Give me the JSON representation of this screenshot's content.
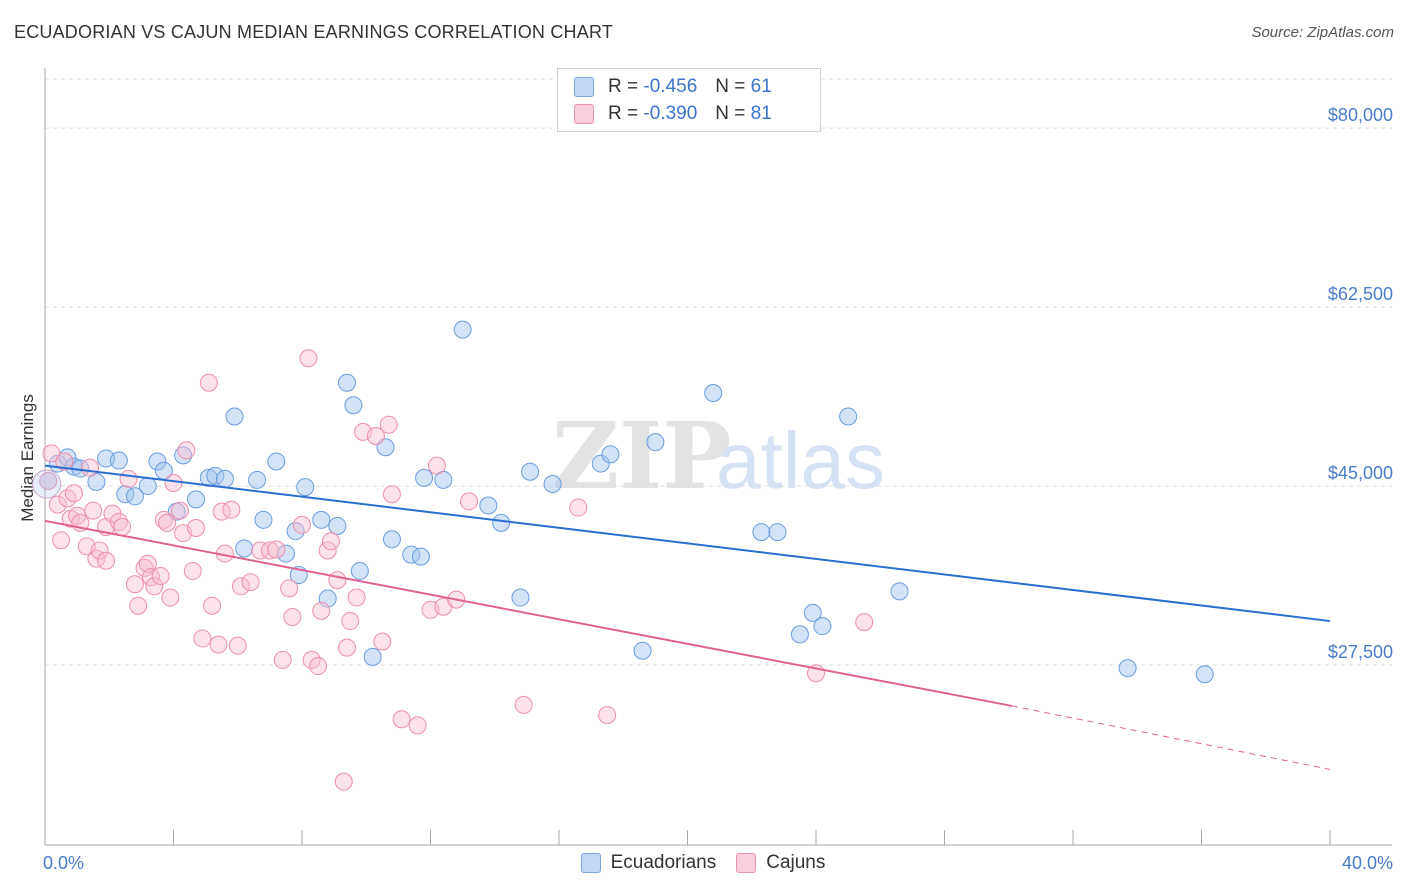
{
  "title": "ECUADORIAN VS CAJUN MEDIAN EARNINGS CORRELATION CHART",
  "source": "Source: ZipAtlas.com",
  "watermark": {
    "zip": "ZIP",
    "atlas": "atlas"
  },
  "legend": {
    "r_label": "R =",
    "n_label": "N =",
    "rows": [
      {
        "name": "Ecuadorians",
        "r": "-0.456",
        "n": "61"
      },
      {
        "name": "Cajuns",
        "r": "-0.390",
        "n": "81"
      }
    ]
  },
  "chart_data": {
    "type": "scatter",
    "title": "ECUADORIAN VS CAJUN MEDIAN EARNINGS CORRELATION CHART",
    "xlabel": "",
    "ylabel": "Median Earnings",
    "xlim": [
      0,
      40
    ],
    "ylim": [
      10000,
      85000
    ],
    "x_tick_labels": [
      "0.0%",
      "40.0%"
    ],
    "y_ticks": [
      27500,
      45000,
      62500,
      80000
    ],
    "y_tick_labels": [
      "$27,500",
      "$45,000",
      "$62,500",
      "$80,000"
    ],
    "colors": {
      "Ecuadorians": "#6a9de0",
      "Cajuns": "#ee8fad",
      "blue_line": "#2a6fd0",
      "pink_line": "#e0638f"
    },
    "series": [
      {
        "name": "Ecuadorians",
        "r": -0.456,
        "n": 61,
        "trend": {
          "x_start": 0,
          "y_start": 47000,
          "x_end": 40,
          "y_end": 31800
        },
        "points": [
          {
            "x": 0.1,
            "y": 45500
          },
          {
            "x": 0.4,
            "y": 47200
          },
          {
            "x": 0.7,
            "y": 47800
          },
          {
            "x": 0.9,
            "y": 46900
          },
          {
            "x": 1.1,
            "y": 46700
          },
          {
            "x": 1.6,
            "y": 45400
          },
          {
            "x": 1.9,
            "y": 47700
          },
          {
            "x": 2.3,
            "y": 47500
          },
          {
            "x": 2.5,
            "y": 44200
          },
          {
            "x": 2.8,
            "y": 44000
          },
          {
            "x": 3.2,
            "y": 45000
          },
          {
            "x": 3.5,
            "y": 47400
          },
          {
            "x": 3.7,
            "y": 46500
          },
          {
            "x": 4.1,
            "y": 42500
          },
          {
            "x": 4.3,
            "y": 48000
          },
          {
            "x": 4.7,
            "y": 43700
          },
          {
            "x": 5.1,
            "y": 45800
          },
          {
            "x": 5.3,
            "y": 46000
          },
          {
            "x": 5.6,
            "y": 45700
          },
          {
            "x": 5.9,
            "y": 51800
          },
          {
            "x": 6.2,
            "y": 38900
          },
          {
            "x": 6.6,
            "y": 45600
          },
          {
            "x": 6.8,
            "y": 41700
          },
          {
            "x": 7.2,
            "y": 47400
          },
          {
            "x": 7.5,
            "y": 38400
          },
          {
            "x": 7.8,
            "y": 40600
          },
          {
            "x": 7.9,
            "y": 36300
          },
          {
            "x": 8.1,
            "y": 44900
          },
          {
            "x": 8.6,
            "y": 41700
          },
          {
            "x": 8.8,
            "y": 34000
          },
          {
            "x": 9.1,
            "y": 41100
          },
          {
            "x": 9.4,
            "y": 55100
          },
          {
            "x": 9.6,
            "y": 52900
          },
          {
            "x": 9.8,
            "y": 36700
          },
          {
            "x": 10.2,
            "y": 28300
          },
          {
            "x": 10.6,
            "y": 48800
          },
          {
            "x": 10.8,
            "y": 39800
          },
          {
            "x": 11.4,
            "y": 38300
          },
          {
            "x": 11.7,
            "y": 38100
          },
          {
            "x": 11.8,
            "y": 45800
          },
          {
            "x": 12.4,
            "y": 45600
          },
          {
            "x": 13.0,
            "y": 60300
          },
          {
            "x": 13.8,
            "y": 43100
          },
          {
            "x": 14.2,
            "y": 41400
          },
          {
            "x": 14.8,
            "y": 34100
          },
          {
            "x": 15.1,
            "y": 46400
          },
          {
            "x": 15.8,
            "y": 45200
          },
          {
            "x": 17.3,
            "y": 47200
          },
          {
            "x": 17.6,
            "y": 48100
          },
          {
            "x": 18.6,
            "y": 28900
          },
          {
            "x": 19.0,
            "y": 49300
          },
          {
            "x": 20.8,
            "y": 54100
          },
          {
            "x": 22.3,
            "y": 40500
          },
          {
            "x": 22.8,
            "y": 40500
          },
          {
            "x": 23.5,
            "y": 30500
          },
          {
            "x": 23.9,
            "y": 32600
          },
          {
            "x": 24.2,
            "y": 31300
          },
          {
            "x": 25.0,
            "y": 51800
          },
          {
            "x": 26.6,
            "y": 34700
          },
          {
            "x": 33.7,
            "y": 27200
          },
          {
            "x": 36.1,
            "y": 26600
          }
        ]
      },
      {
        "name": "Cajuns",
        "r": -0.39,
        "n": 81,
        "trend": {
          "x_start": 0,
          "y_start": 41600,
          "x_end": 30.1,
          "y_end": 23500,
          "dashed_to_x": 40,
          "dashed_to_y": 17300
        },
        "points": [
          {
            "x": 0.1,
            "y": 45500
          },
          {
            "x": 0.2,
            "y": 48200
          },
          {
            "x": 0.4,
            "y": 43200
          },
          {
            "x": 0.5,
            "y": 39700
          },
          {
            "x": 0.6,
            "y": 47400
          },
          {
            "x": 0.7,
            "y": 43800
          },
          {
            "x": 0.8,
            "y": 41800
          },
          {
            "x": 0.9,
            "y": 44300
          },
          {
            "x": 1.0,
            "y": 42100
          },
          {
            "x": 1.1,
            "y": 41400
          },
          {
            "x": 1.3,
            "y": 39100
          },
          {
            "x": 1.4,
            "y": 46800
          },
          {
            "x": 1.5,
            "y": 42600
          },
          {
            "x": 1.6,
            "y": 37900
          },
          {
            "x": 1.7,
            "y": 38700
          },
          {
            "x": 1.9,
            "y": 37700
          },
          {
            "x": 1.9,
            "y": 41000
          },
          {
            "x": 2.1,
            "y": 42300
          },
          {
            "x": 2.3,
            "y": 41500
          },
          {
            "x": 2.4,
            "y": 41000
          },
          {
            "x": 2.6,
            "y": 45700
          },
          {
            "x": 2.8,
            "y": 35400
          },
          {
            "x": 2.9,
            "y": 33300
          },
          {
            "x": 3.1,
            "y": 37000
          },
          {
            "x": 3.2,
            "y": 37400
          },
          {
            "x": 3.3,
            "y": 36100
          },
          {
            "x": 3.4,
            "y": 35200
          },
          {
            "x": 3.6,
            "y": 36200
          },
          {
            "x": 3.7,
            "y": 41700
          },
          {
            "x": 3.8,
            "y": 41400
          },
          {
            "x": 3.9,
            "y": 34100
          },
          {
            "x": 4.0,
            "y": 45300
          },
          {
            "x": 4.2,
            "y": 42600
          },
          {
            "x": 4.3,
            "y": 40400
          },
          {
            "x": 4.4,
            "y": 48500
          },
          {
            "x": 4.6,
            "y": 36700
          },
          {
            "x": 4.7,
            "y": 40900
          },
          {
            "x": 4.9,
            "y": 30100
          },
          {
            "x": 5.1,
            "y": 55100
          },
          {
            "x": 5.2,
            "y": 33300
          },
          {
            "x": 5.4,
            "y": 29500
          },
          {
            "x": 5.5,
            "y": 42500
          },
          {
            "x": 5.6,
            "y": 38400
          },
          {
            "x": 5.8,
            "y": 42700
          },
          {
            "x": 6.0,
            "y": 29400
          },
          {
            "x": 6.1,
            "y": 35200
          },
          {
            "x": 6.4,
            "y": 35600
          },
          {
            "x": 6.7,
            "y": 38700
          },
          {
            "x": 7.0,
            "y": 38700
          },
          {
            "x": 7.2,
            "y": 38800
          },
          {
            "x": 7.4,
            "y": 28000
          },
          {
            "x": 7.6,
            "y": 35000
          },
          {
            "x": 7.7,
            "y": 32200
          },
          {
            "x": 8.0,
            "y": 41200
          },
          {
            "x": 8.2,
            "y": 57500
          },
          {
            "x": 8.3,
            "y": 28000
          },
          {
            "x": 8.5,
            "y": 27400
          },
          {
            "x": 8.6,
            "y": 32800
          },
          {
            "x": 8.8,
            "y": 38700
          },
          {
            "x": 8.9,
            "y": 39600
          },
          {
            "x": 9.1,
            "y": 35800
          },
          {
            "x": 9.3,
            "y": 16100
          },
          {
            "x": 9.4,
            "y": 29200
          },
          {
            "x": 9.5,
            "y": 31800
          },
          {
            "x": 9.7,
            "y": 34100
          },
          {
            "x": 9.9,
            "y": 50300
          },
          {
            "x": 10.3,
            "y": 49900
          },
          {
            "x": 10.5,
            "y": 29800
          },
          {
            "x": 10.7,
            "y": 51000
          },
          {
            "x": 10.8,
            "y": 44200
          },
          {
            "x": 11.1,
            "y": 22200
          },
          {
            "x": 11.6,
            "y": 21600
          },
          {
            "x": 12.0,
            "y": 32900
          },
          {
            "x": 12.2,
            "y": 47000
          },
          {
            "x": 12.4,
            "y": 33200
          },
          {
            "x": 12.8,
            "y": 33900
          },
          {
            "x": 13.2,
            "y": 43500
          },
          {
            "x": 14.9,
            "y": 23600
          },
          {
            "x": 16.6,
            "y": 42900
          },
          {
            "x": 17.5,
            "y": 22600
          },
          {
            "x": 24.0,
            "y": 26700
          },
          {
            "x": 25.5,
            "y": 31700
          }
        ]
      }
    ]
  }
}
